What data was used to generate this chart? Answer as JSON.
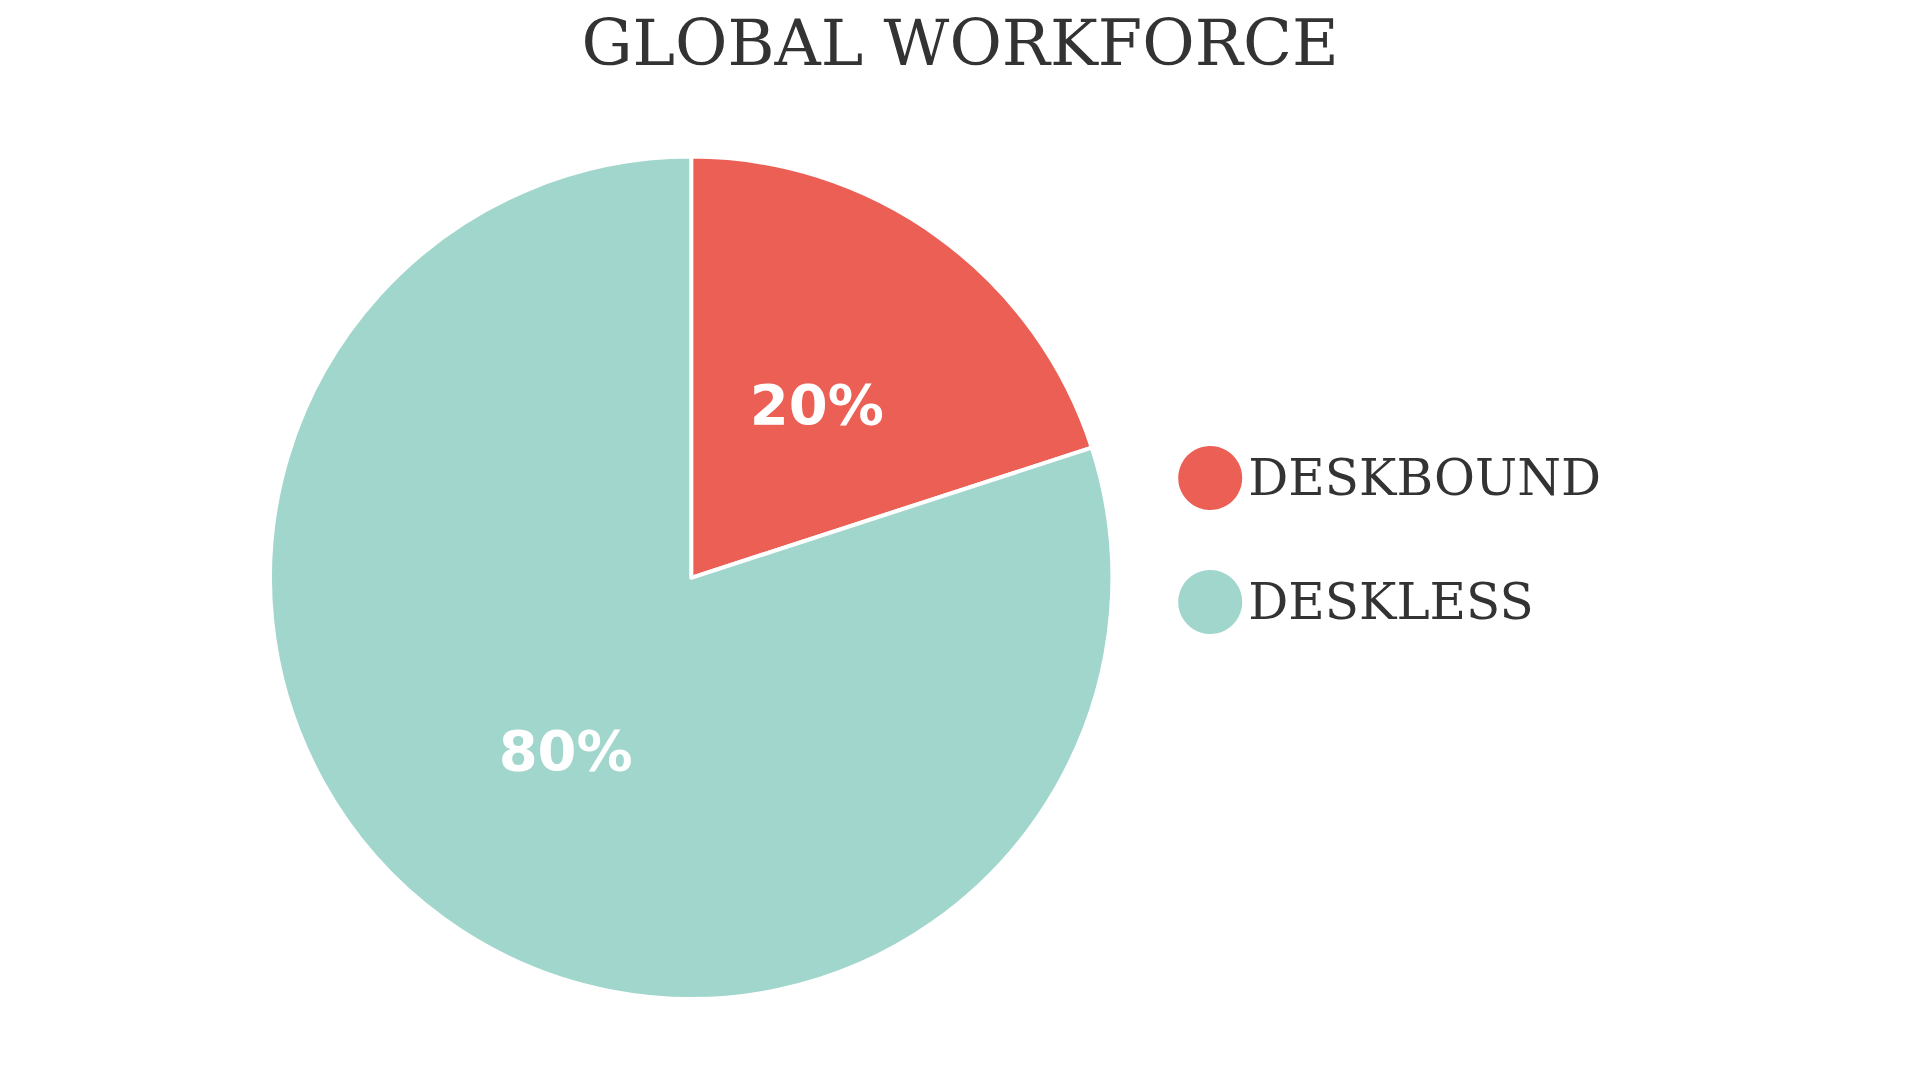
{
  "chart_data": {
    "type": "pie",
    "title": "GLOBAL WORKFORCE",
    "categories": [
      "DESKBOUND",
      "DESKLESS"
    ],
    "values": [
      20,
      80
    ],
    "value_labels": [
      "20%",
      "80%"
    ],
    "colors": [
      "#ec5f55",
      "#a1d6cd"
    ],
    "legend": "right"
  }
}
